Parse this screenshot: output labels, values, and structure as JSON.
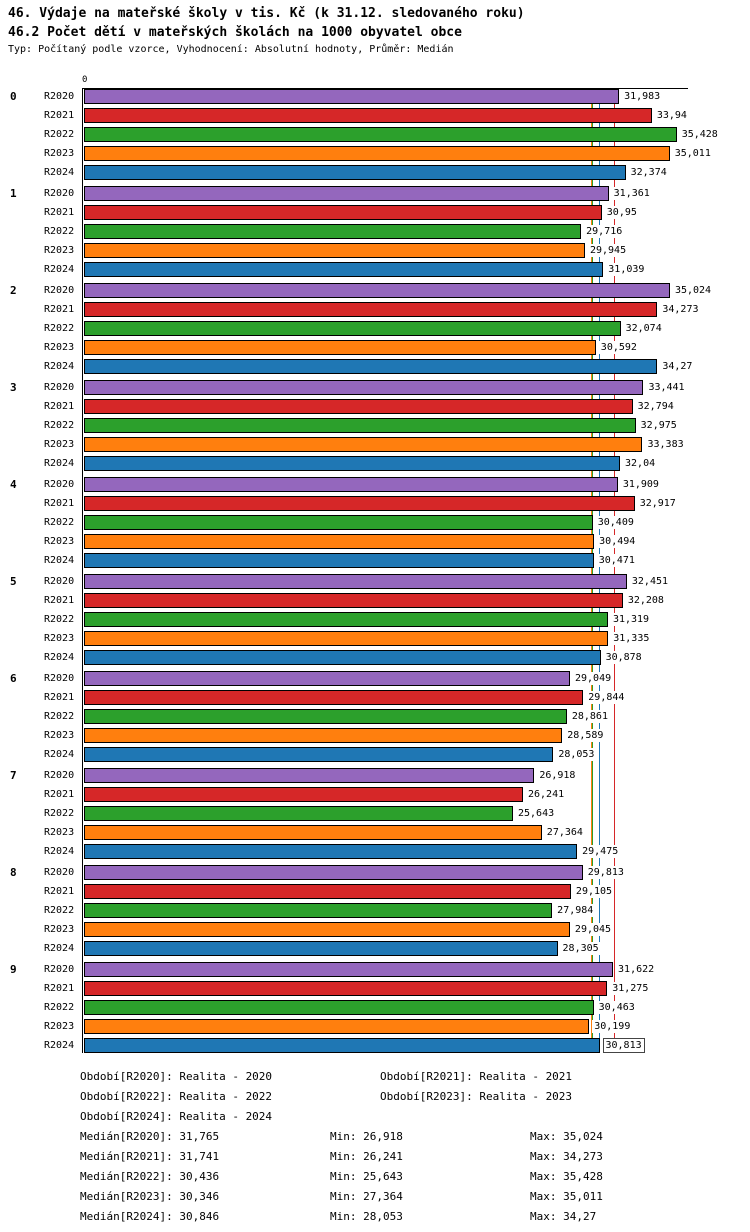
{
  "title": "46. Výdaje na mateřské školy v tis. Kč (k 31.12. sledovaného roku)",
  "subtitle": "46.2 Počet dětí v mateřských školách na 1000 obyvatel obce",
  "meta": "Typ: Počítaný podle vzorce, Vyhodnocení: Absolutní hodnoty, Průměr: Medián",
  "axis": {
    "zero_label": "0"
  },
  "chart_data": {
    "type": "bar",
    "orientation": "horizontal",
    "title": "46. Výdaje na mateřské školy v tis. Kč (k 31.12. sledovaného roku)",
    "subtitle": "46.2 Počet dětí v mateřských školách na 1000 obyvatel obce",
    "xlim": [
      0,
      36.3
    ],
    "grid": false,
    "legend_position": "bottom",
    "categories": [
      "0",
      "1",
      "2",
      "3",
      "4",
      "5",
      "6",
      "7",
      "8",
      "9"
    ],
    "series": [
      {
        "name": "R2020",
        "color": "#9467bd",
        "median": 31.765,
        "period": "Realita - 2020",
        "min": 26.918,
        "max": 35.024
      },
      {
        "name": "R2021",
        "color": "#d62728",
        "median": 31.741,
        "period": "Realita - 2021",
        "min": 26.241,
        "max": 34.273
      },
      {
        "name": "R2022",
        "color": "#2ca02c",
        "median": 30.436,
        "period": "Realita - 2022",
        "min": 25.643,
        "max": 35.428
      },
      {
        "name": "R2023",
        "color": "#ff7f0e",
        "median": 30.346,
        "period": "Realita - 2023",
        "min": 27.364,
        "max": 35.011
      },
      {
        "name": "R2024",
        "color": "#1f77b4",
        "median": 30.846,
        "period": "Realita - 2024",
        "min": 28.053,
        "max": 34.27
      }
    ],
    "groups": [
      {
        "label": "0",
        "values": [
          31.983,
          33.94,
          35.428,
          35.011,
          32.374
        ],
        "labels": [
          "31,983",
          "33,94",
          "35,428",
          "35,011",
          "32,374"
        ]
      },
      {
        "label": "1",
        "values": [
          31.361,
          30.95,
          29.716,
          29.945,
          31.039
        ],
        "labels": [
          "31,361",
          "30,95",
          "29,716",
          "29,945",
          "31,039"
        ]
      },
      {
        "label": "2",
        "values": [
          35.024,
          34.273,
          32.074,
          30.592,
          34.27
        ],
        "labels": [
          "35,024",
          "34,273",
          "32,074",
          "30,592",
          "34,27"
        ]
      },
      {
        "label": "3",
        "values": [
          33.441,
          32.794,
          32.975,
          33.383,
          32.04
        ],
        "labels": [
          "33,441",
          "32,794",
          "32,975",
          "33,383",
          "32,04"
        ]
      },
      {
        "label": "4",
        "values": [
          31.909,
          32.917,
          30.409,
          30.494,
          30.471
        ],
        "labels": [
          "31,909",
          "32,917",
          "30,409",
          "30,494",
          "30,471"
        ]
      },
      {
        "label": "5",
        "values": [
          32.451,
          32.208,
          31.319,
          31.335,
          30.878
        ],
        "labels": [
          "32,451",
          "32,208",
          "31,319",
          "31,335",
          "30,878"
        ]
      },
      {
        "label": "6",
        "values": [
          29.049,
          29.844,
          28.861,
          28.589,
          28.053
        ],
        "labels": [
          "29,049",
          "29,844",
          "28,861",
          "28,589",
          "28,053"
        ]
      },
      {
        "label": "7",
        "values": [
          26.918,
          26.241,
          25.643,
          27.364,
          29.475
        ],
        "labels": [
          "26,918",
          "26,241",
          "25,643",
          "27,364",
          "29,475"
        ]
      },
      {
        "label": "8",
        "values": [
          29.813,
          29.105,
          27.984,
          29.045,
          28.305
        ],
        "labels": [
          "29,813",
          "29,105",
          "27,984",
          "29,045",
          "28,305"
        ]
      },
      {
        "label": "9",
        "values": [
          31.622,
          31.275,
          30.463,
          30.199,
          30.813
        ],
        "labels": [
          "31,622",
          "31,275",
          "30,463",
          "30,199",
          "30,813"
        ]
      }
    ],
    "highlight": {
      "group_index": 9,
      "series_index": 4
    }
  },
  "footer": {
    "period_rows": [
      [
        "Období[R2020]: Realita - 2020",
        "Období[R2021]: Realita - 2021"
      ],
      [
        "Období[R2022]: Realita - 2022",
        "Období[R2023]: Realita - 2023"
      ],
      [
        "Období[R2024]: Realita - 2024"
      ]
    ],
    "stat_rows": [
      [
        "Medián[R2020]: 31,765",
        "Min: 26,918",
        "Max: 35,024"
      ],
      [
        "Medián[R2021]: 31,741",
        "Min: 26,241",
        "Max: 34,273"
      ],
      [
        "Medián[R2022]: 30,436",
        "Min: 25,643",
        "Max: 35,428"
      ],
      [
        "Medián[R2023]: 30,346",
        "Min: 27,364",
        "Max: 35,011"
      ],
      [
        "Medián[R2024]: 30,846",
        "Min: 28,053",
        "Max: 34,27"
      ]
    ]
  }
}
